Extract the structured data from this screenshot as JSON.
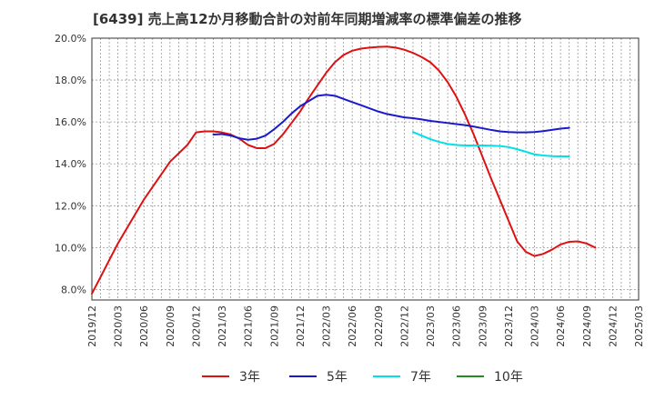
{
  "title": "[6439]  売上高12か月移動合計の対前年同期増減率の標準偏差の推移",
  "chart_data": {
    "type": "line",
    "title": "[6439]  売上高12か月移動合計の対前年同期増減率の標準偏差の推移",
    "ylim": [
      7.5,
      20.0
    ],
    "yticks": [
      8.0,
      10.0,
      12.0,
      14.0,
      16.0,
      18.0,
      20.0
    ],
    "ytick_labels": [
      "8.0%",
      "10.0%",
      "12.0%",
      "14.0%",
      "16.0%",
      "18.0%",
      "20.0%"
    ],
    "xticks": [
      "2019/12",
      "2020/03",
      "2020/06",
      "2020/09",
      "2020/12",
      "2021/03",
      "2021/06",
      "2021/09",
      "2021/12",
      "2022/03",
      "2022/06",
      "2022/09",
      "2022/12",
      "2023/03",
      "2023/06",
      "2023/09",
      "2023/12",
      "2024/03",
      "2024/06",
      "2024/09",
      "2024/12",
      "2025/03"
    ],
    "grid": true,
    "legend_position": "bottom",
    "series": [
      {
        "name": "3年",
        "color": "#dd1111",
        "points": [
          [
            "2019/12",
            7.8
          ],
          [
            "2020/01",
            8.6
          ],
          [
            "2020/02",
            9.4
          ],
          [
            "2020/03",
            10.2
          ],
          [
            "2020/04",
            10.9
          ],
          [
            "2020/05",
            11.6
          ],
          [
            "2020/06",
            12.3
          ],
          [
            "2020/07",
            12.9
          ],
          [
            "2020/08",
            13.5
          ],
          [
            "2020/09",
            14.1
          ],
          [
            "2020/10",
            14.5
          ],
          [
            "2020/11",
            14.9
          ],
          [
            "2020/12",
            15.5
          ],
          [
            "2021/01",
            15.55
          ],
          [
            "2021/02",
            15.55
          ],
          [
            "2021/03",
            15.5
          ],
          [
            "2021/04",
            15.4
          ],
          [
            "2021/05",
            15.2
          ],
          [
            "2021/06",
            14.9
          ],
          [
            "2021/07",
            14.75
          ],
          [
            "2021/08",
            14.75
          ],
          [
            "2021/09",
            14.95
          ],
          [
            "2021/10",
            15.4
          ],
          [
            "2021/11",
            15.95
          ],
          [
            "2021/12",
            16.5
          ],
          [
            "2022/01",
            17.15
          ],
          [
            "2022/02",
            17.75
          ],
          [
            "2022/03",
            18.35
          ],
          [
            "2022/04",
            18.85
          ],
          [
            "2022/05",
            19.2
          ],
          [
            "2022/06",
            19.4
          ],
          [
            "2022/07",
            19.5
          ],
          [
            "2022/08",
            19.55
          ],
          [
            "2022/09",
            19.58
          ],
          [
            "2022/10",
            19.6
          ],
          [
            "2022/11",
            19.55
          ],
          [
            "2022/12",
            19.45
          ],
          [
            "2023/01",
            19.3
          ],
          [
            "2023/02",
            19.1
          ],
          [
            "2023/03",
            18.85
          ],
          [
            "2023/04",
            18.45
          ],
          [
            "2023/05",
            17.9
          ],
          [
            "2023/06",
            17.2
          ],
          [
            "2023/07",
            16.35
          ],
          [
            "2023/08",
            15.4
          ],
          [
            "2023/09",
            14.35
          ],
          [
            "2023/10",
            13.3
          ],
          [
            "2023/11",
            12.3
          ],
          [
            "2023/12",
            11.3
          ],
          [
            "2024/01",
            10.3
          ],
          [
            "2024/02",
            9.8
          ],
          [
            "2024/03",
            9.6
          ],
          [
            "2024/04",
            9.7
          ],
          [
            "2024/05",
            9.9
          ],
          [
            "2024/06",
            10.15
          ],
          [
            "2024/07",
            10.28
          ],
          [
            "2024/08",
            10.3
          ],
          [
            "2024/09",
            10.2
          ],
          [
            "2024/10",
            10.0
          ]
        ]
      },
      {
        "name": "5年",
        "color": "#1a1acc",
        "points": [
          [
            "2021/02",
            15.4
          ],
          [
            "2021/03",
            15.42
          ],
          [
            "2021/04",
            15.35
          ],
          [
            "2021/05",
            15.22
          ],
          [
            "2021/06",
            15.15
          ],
          [
            "2021/07",
            15.2
          ],
          [
            "2021/08",
            15.35
          ],
          [
            "2021/09",
            15.65
          ],
          [
            "2021/10",
            16.0
          ],
          [
            "2021/11",
            16.4
          ],
          [
            "2021/12",
            16.75
          ],
          [
            "2022/01",
            17.0
          ],
          [
            "2022/02",
            17.25
          ],
          [
            "2022/03",
            17.3
          ],
          [
            "2022/04",
            17.25
          ],
          [
            "2022/05",
            17.1
          ],
          [
            "2022/06",
            16.95
          ],
          [
            "2022/07",
            16.8
          ],
          [
            "2022/08",
            16.65
          ],
          [
            "2022/09",
            16.5
          ],
          [
            "2022/10",
            16.38
          ],
          [
            "2022/11",
            16.3
          ],
          [
            "2022/12",
            16.22
          ],
          [
            "2023/01",
            16.18
          ],
          [
            "2023/02",
            16.12
          ],
          [
            "2023/03",
            16.05
          ],
          [
            "2023/04",
            16.0
          ],
          [
            "2023/05",
            15.95
          ],
          [
            "2023/06",
            15.9
          ],
          [
            "2023/07",
            15.85
          ],
          [
            "2023/08",
            15.78
          ],
          [
            "2023/09",
            15.7
          ],
          [
            "2023/10",
            15.62
          ],
          [
            "2023/11",
            15.55
          ],
          [
            "2023/12",
            15.52
          ],
          [
            "2024/01",
            15.5
          ],
          [
            "2024/02",
            15.5
          ],
          [
            "2024/03",
            15.52
          ],
          [
            "2024/04",
            15.56
          ],
          [
            "2024/05",
            15.62
          ],
          [
            "2024/06",
            15.68
          ],
          [
            "2024/07",
            15.72
          ]
        ]
      },
      {
        "name": "7年",
        "color": "#00e0e8",
        "points": [
          [
            "2023/01",
            15.52
          ],
          [
            "2023/02",
            15.35
          ],
          [
            "2023/03",
            15.18
          ],
          [
            "2023/04",
            15.05
          ],
          [
            "2023/05",
            14.95
          ],
          [
            "2023/06",
            14.9
          ],
          [
            "2023/07",
            14.88
          ],
          [
            "2023/08",
            14.88
          ],
          [
            "2023/09",
            14.88
          ],
          [
            "2023/10",
            14.87
          ],
          [
            "2023/11",
            14.85
          ],
          [
            "2023/12",
            14.8
          ],
          [
            "2024/01",
            14.7
          ],
          [
            "2024/02",
            14.58
          ],
          [
            "2024/03",
            14.45
          ],
          [
            "2024/04",
            14.4
          ],
          [
            "2024/05",
            14.37
          ],
          [
            "2024/06",
            14.36
          ],
          [
            "2024/07",
            14.36
          ]
        ]
      },
      {
        "name": "10年",
        "color": "#228b22",
        "points": []
      }
    ]
  }
}
